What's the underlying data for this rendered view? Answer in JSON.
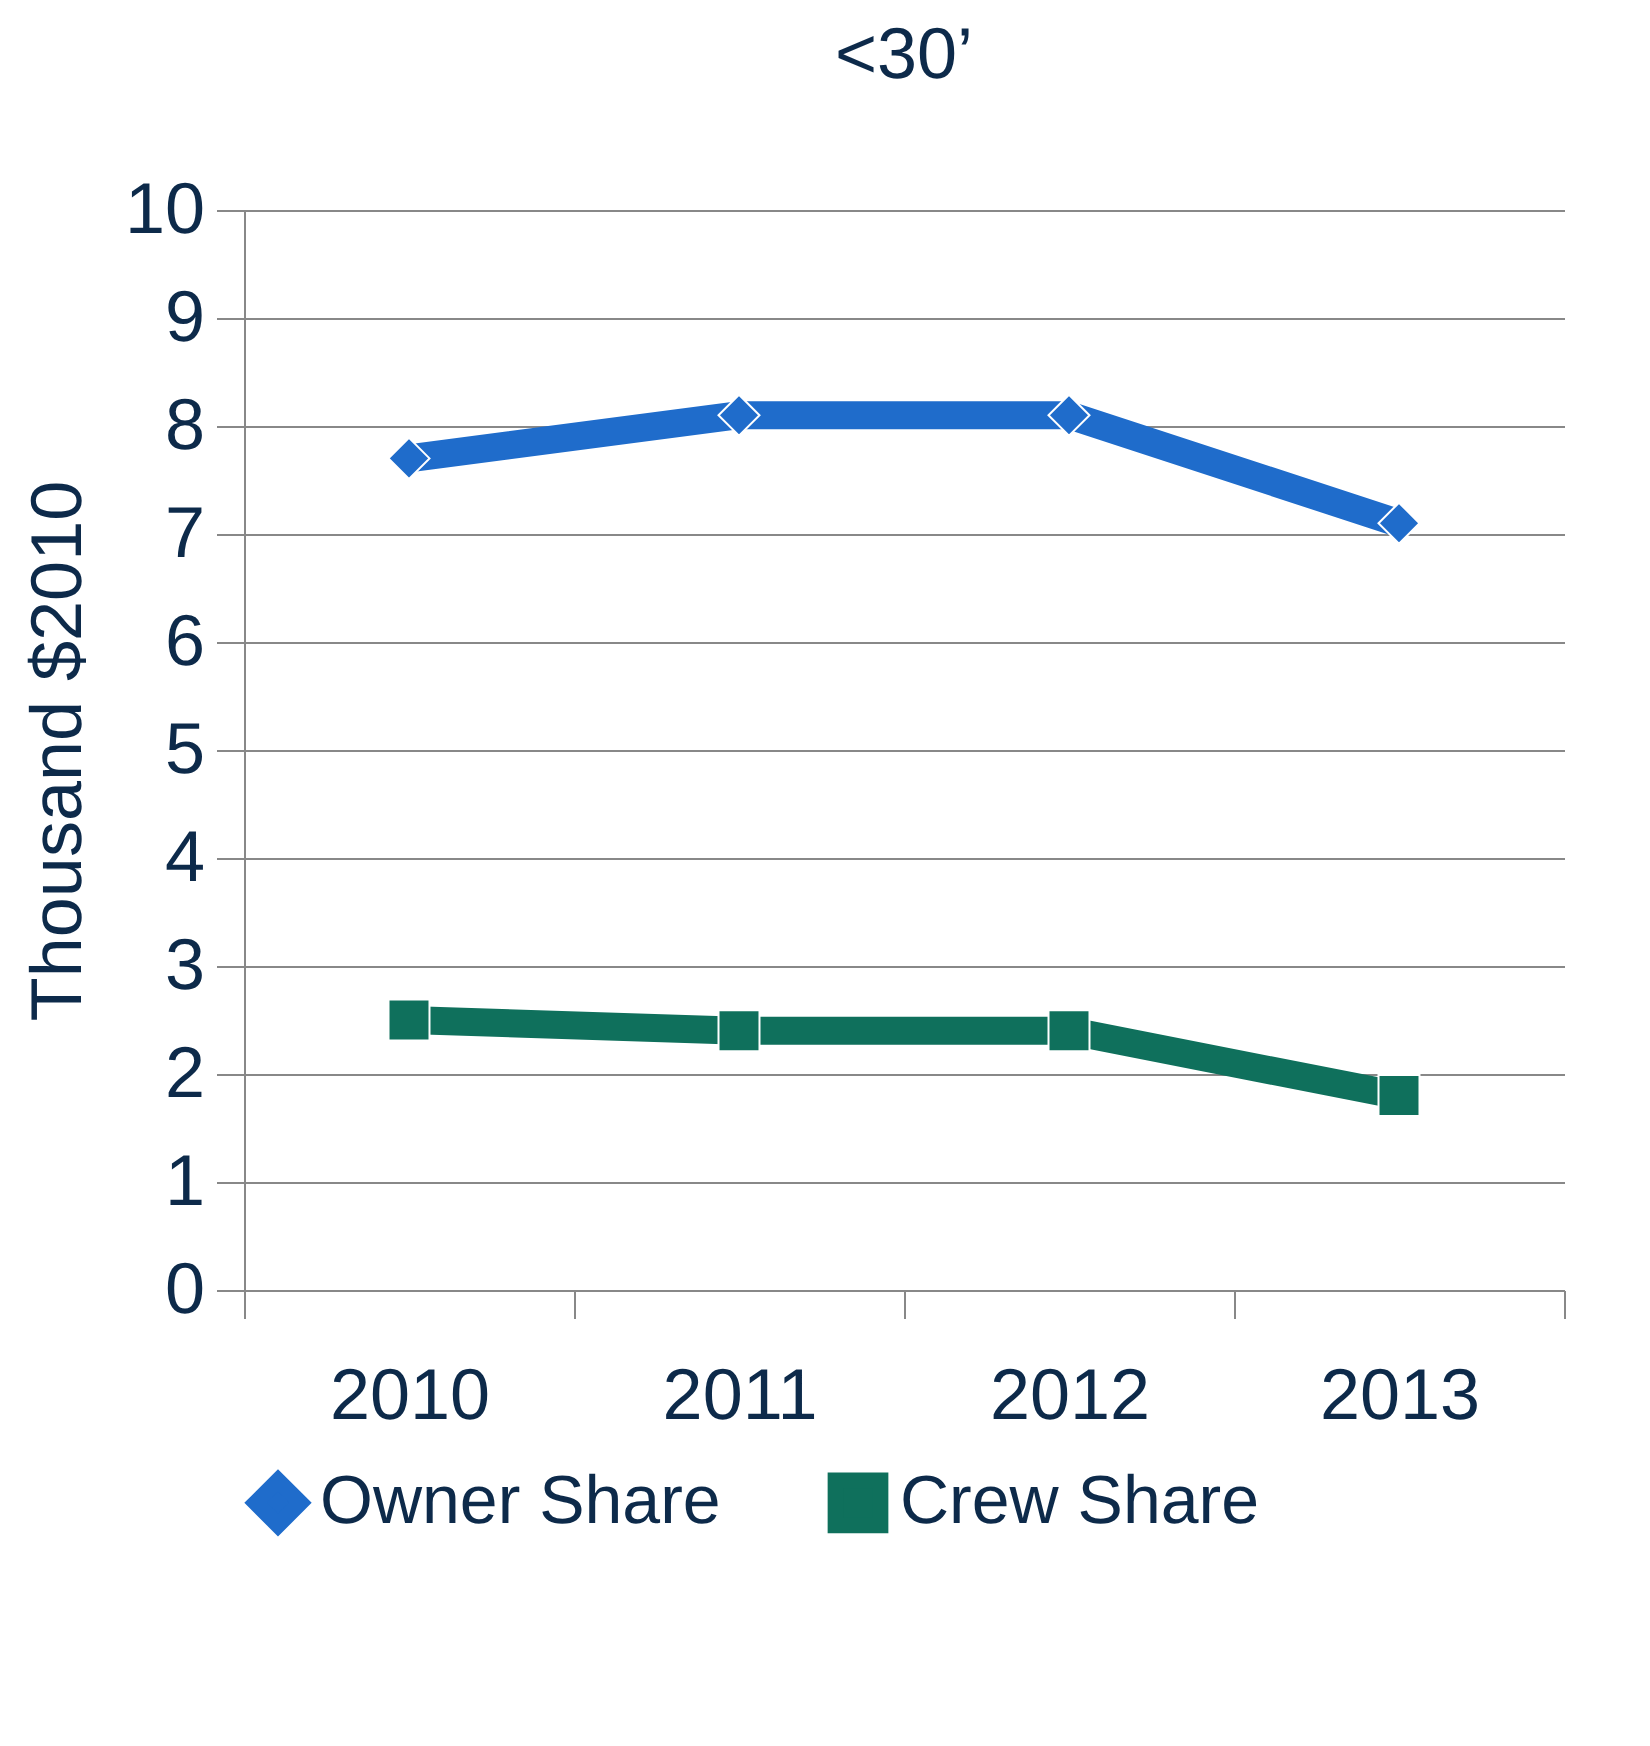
{
  "chart_data": {
    "type": "line",
    "title": "<30’",
    "ylabel": "Thousand $2010",
    "categories": [
      "2010",
      "2011",
      "2012",
      "2013"
    ],
    "series": [
      {
        "name": "Owner Share",
        "color": "#1f6ccb",
        "marker": "diamond",
        "values": [
          7.7,
          8.1,
          8.1,
          7.1
        ]
      },
      {
        "name": "Crew Share",
        "color": "#0f705c",
        "marker": "square",
        "values": [
          2.5,
          2.4,
          2.4,
          1.8
        ]
      }
    ],
    "ylim": [
      0,
      10
    ],
    "yticks": [
      0,
      1,
      2,
      3,
      4,
      5,
      6,
      7,
      8,
      9,
      10
    ],
    "grid": "y",
    "legend": "bottom"
  }
}
